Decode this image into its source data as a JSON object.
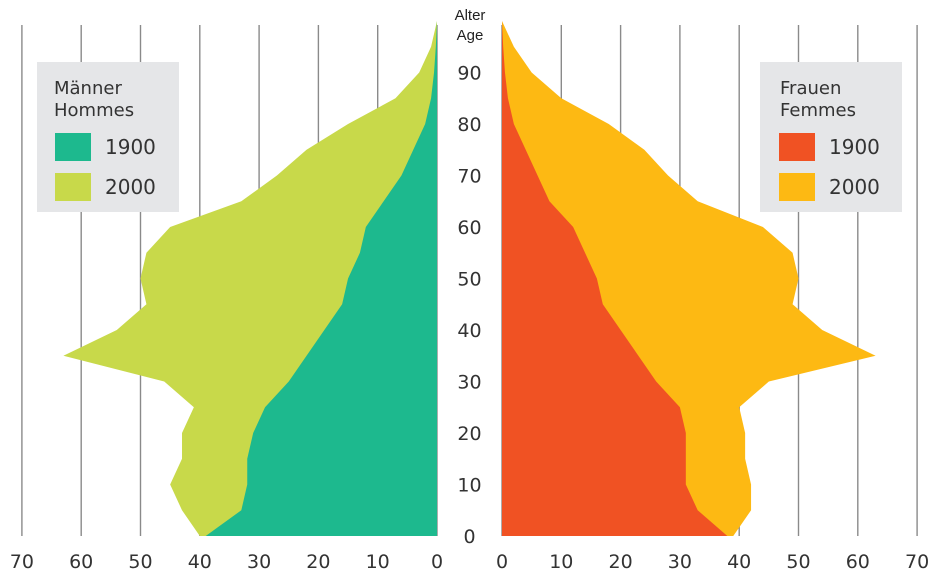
{
  "chart_data": {
    "type": "population-pyramid",
    "y_axis": {
      "title_line1": "Alter",
      "title_line2": "Age",
      "ticks": [
        0,
        10,
        20,
        30,
        40,
        50,
        60,
        70,
        80,
        90
      ],
      "range": [
        0,
        100
      ]
    },
    "x_axis": {
      "left_ticks": [
        70,
        60,
        50,
        40,
        30,
        20,
        10,
        0
      ],
      "right_ticks": [
        0,
        10,
        20,
        30,
        40,
        50,
        60,
        70
      ],
      "range": [
        0,
        70
      ]
    },
    "grid": true,
    "legends": {
      "men": {
        "title_line1": "Männer",
        "title_line2": "Hommes",
        "entries": [
          "1900",
          "2000"
        ]
      },
      "women": {
        "title_line1": "Frauen",
        "title_line2": "Femmes",
        "entries": [
          "1900",
          "2000"
        ]
      }
    },
    "ages": [
      0,
      5,
      10,
      15,
      20,
      25,
      30,
      35,
      40,
      45,
      50,
      55,
      60,
      65,
      70,
      75,
      80,
      85,
      90,
      95,
      100
    ],
    "series": [
      {
        "name": "1900",
        "side": "men",
        "color": "#1db98e",
        "values": [
          39,
          33,
          32,
          32,
          31,
          29,
          25,
          22,
          19,
          16,
          15,
          13,
          12,
          9,
          6,
          4,
          2,
          1,
          0.5,
          0.2,
          0
        ]
      },
      {
        "name": "2000",
        "side": "men",
        "color": "#c8d94a",
        "values": [
          40,
          43,
          45,
          43,
          43,
          41,
          46,
          63,
          54,
          49,
          50,
          49,
          45,
          33,
          27,
          22,
          15,
          7,
          3,
          1,
          0
        ]
      },
      {
        "name": "1900",
        "side": "women",
        "color": "#f05223",
        "values": [
          38,
          33,
          31,
          31,
          31,
          30,
          26,
          23,
          20,
          17,
          16,
          14,
          12,
          8,
          6,
          4,
          2,
          1,
          0.5,
          0.2,
          0
        ]
      },
      {
        "name": "2000",
        "side": "women",
        "color": "#fdb913",
        "values": [
          39,
          42,
          42,
          41,
          41,
          40,
          45,
          63,
          54,
          49,
          50,
          49,
          44,
          33,
          28,
          24,
          18,
          10,
          5,
          2,
          0
        ]
      }
    ]
  }
}
